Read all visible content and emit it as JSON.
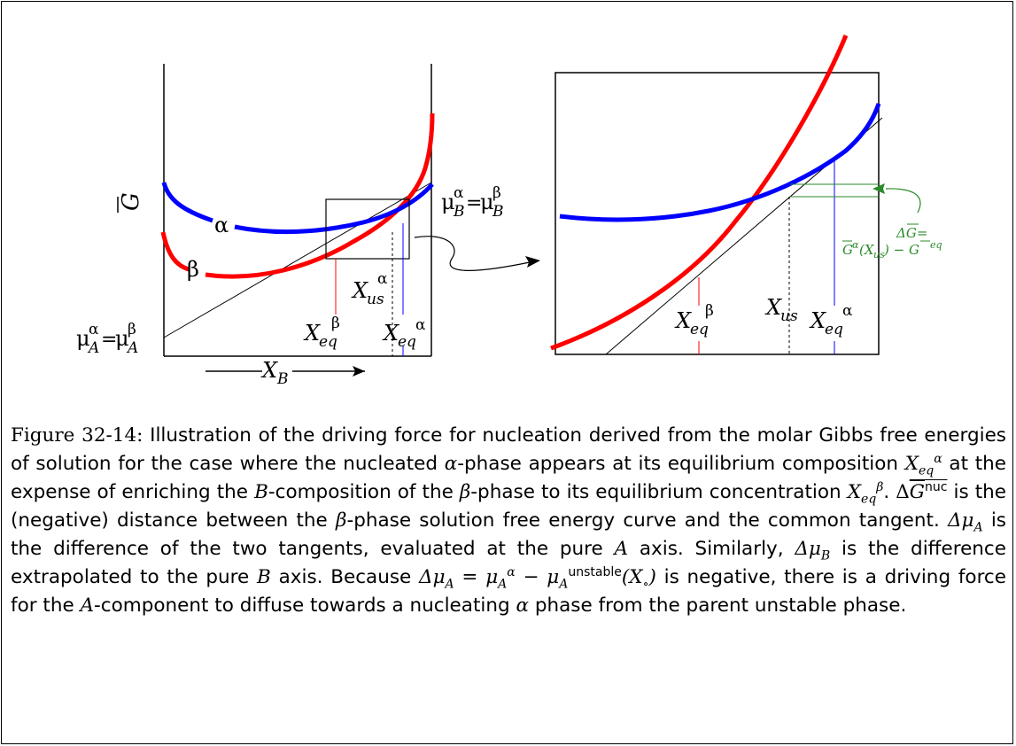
{
  "figure": {
    "left_panel": {
      "y_axis_label": "G",
      "x_axis_label": "X",
      "x_axis_sub": "B",
      "alpha_label": "α",
      "beta_label": "β",
      "mu_B": {
        "left": "μ",
        "left_sup": "α",
        "left_sub": "B",
        "eq": "=",
        "right": "μ",
        "right_sup": "β",
        "right_sub": "B"
      },
      "mu_A": {
        "left": "μ",
        "left_sup": "α",
        "left_sub": "A",
        "eq": "=",
        "right": "μ",
        "right_sup": "β",
        "right_sub": "A"
      },
      "x_us": {
        "base": "X",
        "sub": "us",
        "sup": "α"
      },
      "x_eq_beta": {
        "base": "X",
        "sub": "eq",
        "sup": "β"
      },
      "x_eq_alpha": {
        "base": "X",
        "sub": "eq",
        "sup": "α"
      }
    },
    "right_panel": {
      "x_eq_beta": {
        "base": "X",
        "sub": "eq",
        "sup": "β"
      },
      "x_us": {
        "base": "X",
        "sub": "us"
      },
      "x_eq_alpha": {
        "base": "X",
        "sub": "eq",
        "sup": "α"
      },
      "delta_g": "ΔG=",
      "delta_g_expr_1": "G",
      "delta_g_expr_sup": "α",
      "delta_g_expr_2": "(X",
      "delta_g_expr_sub": "us",
      "delta_g_expr_3": ") − G",
      "delta_g_expr_sup2": "eq"
    },
    "colors": {
      "alpha_curve": "#0000ff",
      "beta_curve": "#ff0000",
      "annotation": "#2a8a2a"
    }
  },
  "caption": {
    "figure_number": "Figure 32-14:",
    "t1": " Illustration of the driving force for nucleation derived from the molar Gibbs free energies of solution for the case where the nucleated ",
    "m_alpha_1": "α",
    "t2": "-phase appears at its equilibrium composition ",
    "m_x1": "X",
    "m_x1_sub": "eq",
    "m_x1_sup": "α",
    "t3": " at the expense of enriching the ",
    "m_B1": "B",
    "t4": "-composition of the ",
    "m_beta_1": "β",
    "t5": "-phase to its equilibrium concentration ",
    "m_x2": "X",
    "m_x2_sub": "eq",
    "m_x2_sup": "β",
    "t6": ". ",
    "m_dg": "Δ",
    "m_dg_G": "G",
    "m_dg_sup": "nuc",
    "t7": " is the (negative) distance between the ",
    "m_beta_2": "β",
    "t8": "-phase solution free energy curve and the common tangent. ",
    "m_dmuA": "Δμ",
    "m_dmuA_sub": "A",
    "t9": " is the difference of the two tangents, evaluated at the pure ",
    "m_A1": "A",
    "t10": " axis. Similarly, ",
    "m_dmuB": "Δμ",
    "m_dmuB_sub": "B",
    "t11": " is the difference extrapolated to the pure ",
    "m_B2": "B",
    "t12": " axis. Because ",
    "m_eq_lhs": "Δμ",
    "m_eq_lhs_sub": "A",
    "m_eq_mid": " = μ",
    "m_eq_mid_sub": "A",
    "m_eq_mid_sup": "α",
    "m_eq_minus": " − μ",
    "m_eq_minus_sub": "A",
    "m_eq_minus_sup": "unstable",
    "m_eq_arg": "(X",
    "m_eq_arg_sub": "∘",
    "m_eq_close": ")",
    "t13": " is negative, there is a driving force for the ",
    "m_A2": "A",
    "t14": "-component to diffuse towards a nucleating ",
    "m_alpha_2": "α",
    "t15": " phase from the parent unstable phase."
  }
}
